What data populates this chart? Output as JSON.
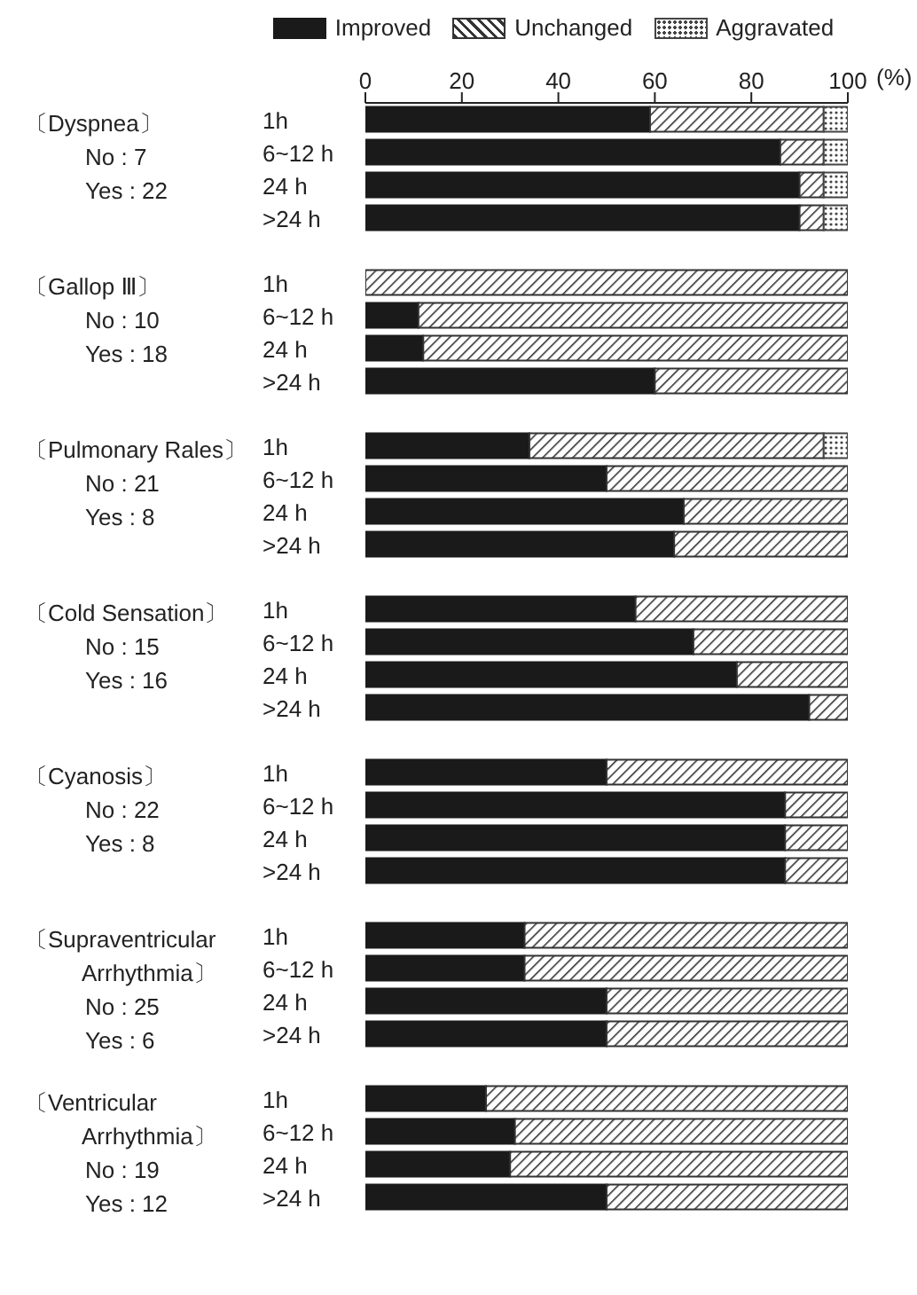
{
  "chart_data": [
    {
      "type": "bar",
      "orientation": "horizontal",
      "stacked": true,
      "title": "〔Dyspnea〕",
      "annotations": [
        "No : 7",
        "Yes : 22"
      ],
      "categories": [
        "1h",
        "6~12 h",
        "24 h",
        ">24 h"
      ],
      "xlim": [
        0,
        100
      ],
      "xticks": [
        0,
        20,
        40,
        60,
        80,
        100
      ],
      "xlabel": "(%)",
      "legend": "top",
      "series": [
        {
          "name": "Improved",
          "color": "#1a1a1a",
          "values": [
            59,
            86,
            90,
            90
          ]
        },
        {
          "name": "Unchanged",
          "color": "#333333",
          "values": [
            36,
            9,
            5,
            5
          ]
        },
        {
          "name": "Aggravated",
          "color": "#444444",
          "values": [
            5,
            5,
            5,
            5
          ]
        }
      ]
    },
    {
      "type": "bar",
      "orientation": "horizontal",
      "stacked": true,
      "title": "〔Gallop Ⅲ〕",
      "annotations": [
        "No : 10",
        "Yes : 18"
      ],
      "categories": [
        "1h",
        "6~12 h",
        "24 h",
        ">24 h"
      ],
      "xlim": [
        0,
        100
      ],
      "tick_labels": "y",
      "series": [
        {
          "color": "#1a1a1a",
          "values": [
            0,
            11,
            12,
            60
          ]
        },
        {
          "color": "#333333",
          "values": [
            100,
            89,
            88,
            40
          ]
        }
      ]
    },
    {
      "type": "bar",
      "orientation": "horizontal",
      "stacked": true,
      "title": "〔Pulmonary Rales〕",
      "annotations": [
        "No : 21",
        "Yes : 8"
      ],
      "categories": [
        "1h",
        "6~12 h",
        "24 h",
        ">24 h"
      ],
      "xlim": [
        0,
        100
      ],
      "tick_labels": "y",
      "series": [
        {
          "color": "#1a1a1a",
          "values": [
            34,
            50,
            66,
            64
          ]
        },
        {
          "color": "#333333",
          "values": [
            61,
            50,
            34,
            36
          ]
        },
        {
          "color": "#444444",
          "values": [
            5,
            0,
            0,
            0
          ]
        }
      ]
    },
    {
      "type": "bar",
      "orientation": "horizontal",
      "stacked": true,
      "title": "〔Cold Sensation〕",
      "annotations": [
        "No : 15",
        "Yes : 16"
      ],
      "categories": [
        "1h",
        "6~12 h",
        "24 h",
        ">24 h"
      ],
      "xlim": [
        0,
        100
      ],
      "tick_labels": "y",
      "series": [
        {
          "color": "#1a1a1a",
          "values": [
            56,
            68,
            77,
            92
          ]
        },
        {
          "color": "#333333",
          "values": [
            44,
            32,
            23,
            8
          ]
        }
      ]
    },
    {
      "type": "bar",
      "orientation": "horizontal",
      "stacked": true,
      "title": "〔Cyanosis〕",
      "annotations": [
        "No : 22",
        "Yes : 8"
      ],
      "categories": [
        "1h",
        "6~12 h",
        "24 h",
        ">24 h"
      ],
      "xlim": [
        0,
        100
      ],
      "tick_labels": "y",
      "series": [
        {
          "color": "#1a1a1a",
          "values": [
            50,
            87,
            87,
            87
          ]
        },
        {
          "color": "#333333",
          "values": [
            50,
            13,
            13,
            13
          ]
        }
      ]
    },
    {
      "type": "bar",
      "orientation": "horizontal",
      "stacked": true,
      "title": "〔Supraventricular Arrhythmia〕",
      "annotations": [
        "No : 25",
        "Yes : 6"
      ],
      "categories": [
        "1h",
        "6~12 h",
        "24 h",
        ">24 h"
      ],
      "xlim": [
        0,
        100
      ],
      "tick_labels": "y",
      "series": [
        {
          "color": "#1a1a1a",
          "values": [
            33,
            33,
            50,
            50
          ]
        },
        {
          "color": "#333333",
          "values": [
            67,
            67,
            50,
            50
          ]
        }
      ]
    },
    {
      "type": "bar",
      "orientation": "horizontal",
      "stacked": true,
      "title": "〔Ventricular Arrhythmia〕",
      "annotations": [
        "No : 19",
        "Yes : 12"
      ],
      "categories": [
        "1h",
        "6~12 h",
        "24 h",
        ">24 h"
      ],
      "xlim": [
        0,
        100
      ],
      "tick_labels": "y",
      "series": [
        {
          "color": "#1a1a1a",
          "values": [
            25,
            31,
            30,
            50
          ]
        },
        {
          "color": "#333333",
          "values": [
            75,
            69,
            70,
            50
          ]
        }
      ]
    }
  ]
}
